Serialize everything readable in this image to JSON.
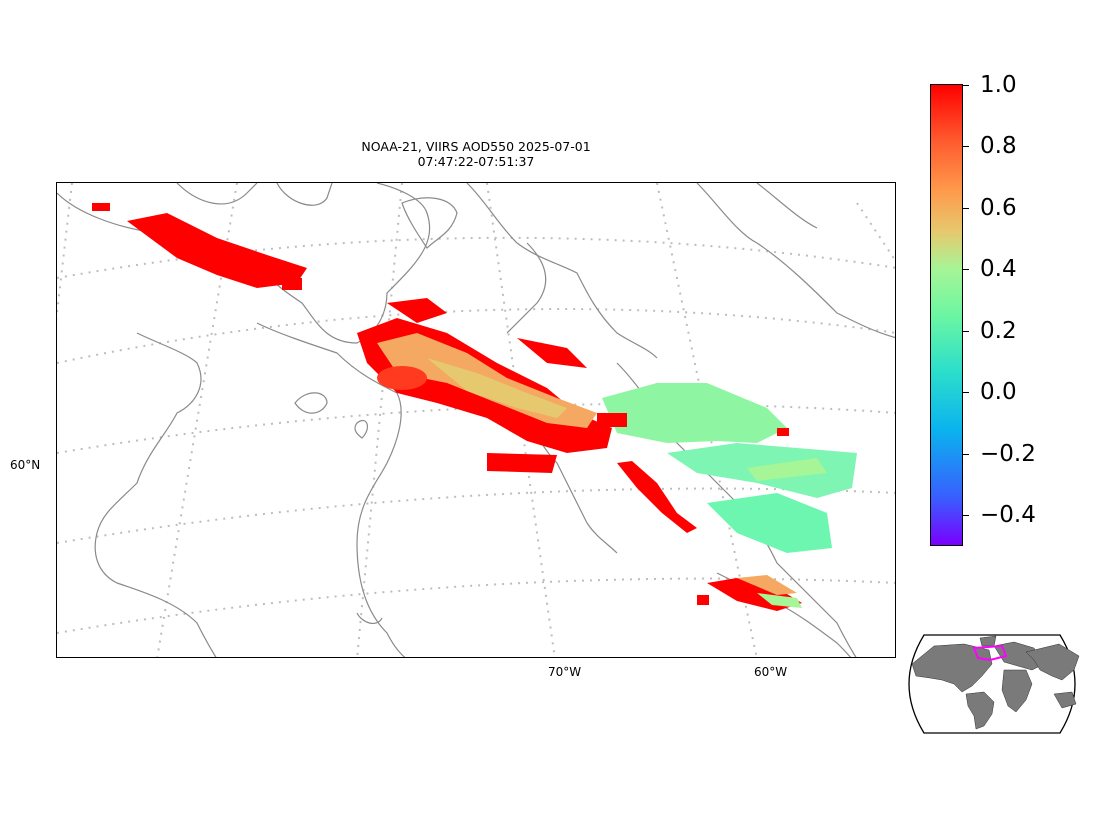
{
  "title": {
    "line1": "NOAA-21, VIIRS AOD550 2025-07-01",
    "line2": "07:47:22-07:51:37"
  },
  "axes": {
    "lat_labels": [
      "60°N"
    ],
    "lon_labels": [
      "70°W",
      "60°W"
    ]
  },
  "colorbar": {
    "min": -0.5,
    "max": 1.0,
    "tick_labels": [
      "1.0",
      "0.8",
      "0.6",
      "0.4",
      "0.2",
      "0.0",
      "−0.2",
      "−0.4"
    ],
    "colors": [
      "#7a00ff",
      "#3a5cff",
      "#0ab3ee",
      "#2ddfca",
      "#6cf6a2",
      "#a6f596",
      "#e6c96e",
      "#ff9a4c",
      "#ff5a2e",
      "#ff0000"
    ]
  },
  "map_style": {
    "coastline_color": "#8a8a8a",
    "gridline_color": "#bdbdbd",
    "high_aod_color": "#ff0000",
    "low_aod_color": "#7ef5b3"
  },
  "inset": {
    "land_color": "#7a7a7a",
    "region_outline_color": "#ff00ff"
  }
}
